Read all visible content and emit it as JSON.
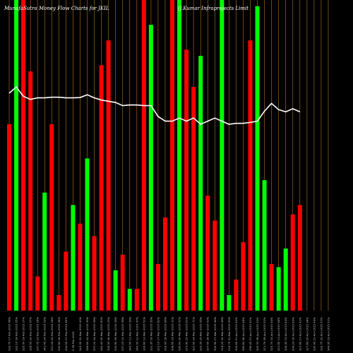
{
  "chart_data": {
    "type": "bar",
    "title": "MunafaSutra  Money Flow  Charts for JKIL",
    "subtitle": "(J.Kumar Infraprojects Limit",
    "bar_colors": {
      "up": "#00ff00",
      "down": "#ff0000"
    },
    "line_color": "#ffffff",
    "grid_color": "#b8732a",
    "background": "#000000",
    "categories": [
      "333.70 17-Feb-2015 08%",
      "332.10 18-Feb-2015 05%",
      "325.00 19-Feb-2015 27%",
      "328.55 20-Feb-2015 57%",
      "337.75 23-Feb-2015 26%",
      "341.45 24-Feb-2015 32%",
      "331.05 25-Feb-2015 28%",
      "330.80 26-Feb-2015 49%",
      "334.50 27-Feb-2015 60%",
      "0 28-Feb-2015",
      "343.00 02-Mar-2015 43%",
      "356.60 03-Mar-2015 35%",
      "337.20 04-Mar-2015 58%",
      "340.40 05-Mar-2015 60%",
      "326.05 06-Mar-2015 25%",
      "335.90 09-Mar-2015 28%",
      "337.20 10-Mar-2015 58%",
      "340.55 11-Mar-2015 39%",
      "340.00 12-Mar-2015 47%",
      "330.60 13-Mar-2015 51%",
      "331.35 16-Mar-2015 35%",
      "323.10 17-Mar-2015 62%",
      "318.40 18-Mar-2015 66%",
      "308.65 19-Mar-2015 31%",
      "295.60 20-Mar-2015 51%",
      "315.90 23-Mar-2015 61%",
      "322.40 24-Mar-2015 71%",
      "320.35 25-Mar-2015 55%",
      "307.45 26-Mar-2015 53%",
      "300.90 27-Mar-2015 46%",
      "319.20 30-Mar-2015 48%",
      "316.75 31-Mar-2015 55%",
      "304.60 01-Apr-2015 40%",
      "285.60 06-Apr-2015 48%",
      "296.45 07-Apr-2015 41%",
      "305.00 08-Apr-2015 33%",
      "311.70 09-Apr-2015 52%",
      "320.70 10-Apr-2015 54%",
      "321.85 13-Apr-2015 56%",
      "326.35 15-Apr-2015 64%",
      "334.20 16-Apr-2015 63%",
      "321.80 17-Apr-2015 42%",
      "327.60 20-Apr-2015 38%",
      "330.40 21-Apr-2015 49%",
      "333.75 22-Apr-2015 57%",
      "344.95 23-Apr-2015 51%"
    ],
    "bar_up": [
      false,
      true,
      false,
      false,
      false,
      true,
      false,
      false,
      false,
      true,
      false,
      true,
      false,
      false,
      false,
      true,
      false,
      true,
      false,
      false,
      true,
      false,
      false,
      false,
      true,
      false,
      false,
      true,
      false,
      false,
      true,
      true,
      false,
      false,
      false,
      true,
      true,
      false,
      true,
      true,
      false,
      false,
      false,
      true,
      false,
      true
    ],
    "values": [
      60,
      100,
      100,
      77,
      11,
      38,
      60,
      5,
      19,
      34,
      28,
      49,
      24,
      79,
      87,
      13,
      18,
      7,
      7,
      100,
      92,
      15,
      30,
      100,
      100,
      84,
      72,
      82,
      37,
      29,
      100,
      5,
      10,
      22,
      87,
      98,
      42,
      15,
      14,
      20,
      31,
      34,
      0,
      0,
      0,
      0
    ],
    "money_flow_line": [
      70,
      72,
      69,
      68,
      68.5,
      68.5,
      68.7,
      68.7,
      68.5,
      68.5,
      68.6,
      69.5,
      68.5,
      67.8,
      67.4,
      67,
      66,
      66.2,
      66.2,
      66,
      66,
      62.5,
      61,
      61,
      62,
      61,
      62,
      60,
      61,
      62,
      61,
      60,
      60.3,
      60.3,
      60.6,
      61,
      64.2,
      66.7,
      64.7,
      64,
      65,
      64
    ],
    "ylim": [
      0,
      100
    ],
    "grid": true,
    "xlabel": "",
    "ylabel": ""
  }
}
